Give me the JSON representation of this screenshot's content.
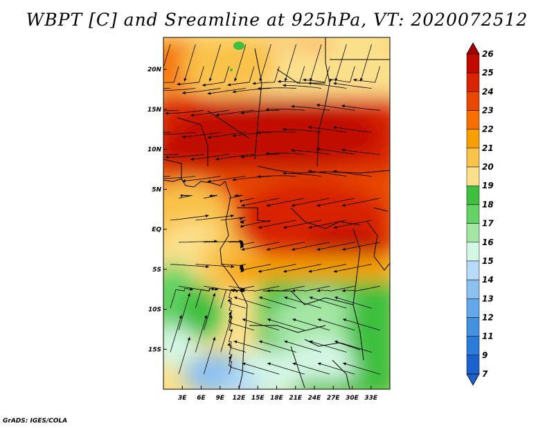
{
  "title": "WBPT [C] and Sreamline at 925hPa, VT: 2020072512",
  "footer": "GrADS: IGES/COLA",
  "map": {
    "variable": "wet bulb potential temperature",
    "units": "C",
    "level": "925hPa",
    "valid_time": "2020072512",
    "lon_range": [
      0,
      36
    ],
    "lat_range": [
      -20,
      24
    ],
    "lon_ticks": [
      {
        "value": 3,
        "label": "3E"
      },
      {
        "value": 6,
        "label": "6E"
      },
      {
        "value": 9,
        "label": "9E"
      },
      {
        "value": 12,
        "label": "12E"
      },
      {
        "value": 15,
        "label": "15E"
      },
      {
        "value": 18,
        "label": "18E"
      },
      {
        "value": 21,
        "label": "21E"
      },
      {
        "value": 24,
        "label": "24E"
      },
      {
        "value": 27,
        "label": "27E"
      },
      {
        "value": 30,
        "label": "30E"
      },
      {
        "value": 33,
        "label": "33E"
      }
    ],
    "lat_ticks": [
      {
        "value": 20,
        "label": "20N"
      },
      {
        "value": 15,
        "label": "15N"
      },
      {
        "value": 10,
        "label": "10N"
      },
      {
        "value": 5,
        "label": "5N"
      },
      {
        "value": 0,
        "label": "EQ"
      },
      {
        "value": -5,
        "label": "5S"
      },
      {
        "value": -10,
        "label": "10S"
      },
      {
        "value": -15,
        "label": "15S"
      }
    ]
  },
  "colorbar": {
    "levels": [
      {
        "label": "26",
        "color": "#a50000"
      },
      {
        "label": "25",
        "color": "#c00a00"
      },
      {
        "label": "24",
        "color": "#d82400"
      },
      {
        "label": "23",
        "color": "#e84800"
      },
      {
        "label": "22",
        "color": "#f57000"
      },
      {
        "label": "21",
        "color": "#f7a000"
      },
      {
        "label": "20",
        "color": "#f9c24a"
      },
      {
        "label": "19",
        "color": "#fbe08c"
      },
      {
        "label": "18",
        "color": "#3ebf3e"
      },
      {
        "label": "17",
        "color": "#64d264"
      },
      {
        "label": "16",
        "color": "#a4e6a4"
      },
      {
        "label": "15",
        "color": "#d4f6e4"
      },
      {
        "label": "14",
        "color": "#b8dcf8"
      },
      {
        "label": "13",
        "color": "#8cc0ef"
      },
      {
        "label": "12",
        "color": "#64a8ea"
      },
      {
        "label": "11",
        "color": "#4292e0"
      },
      {
        "label": "9",
        "color": "#2a7cd8"
      },
      {
        "label": "7",
        "color": "#1c62cf"
      }
    ]
  }
}
